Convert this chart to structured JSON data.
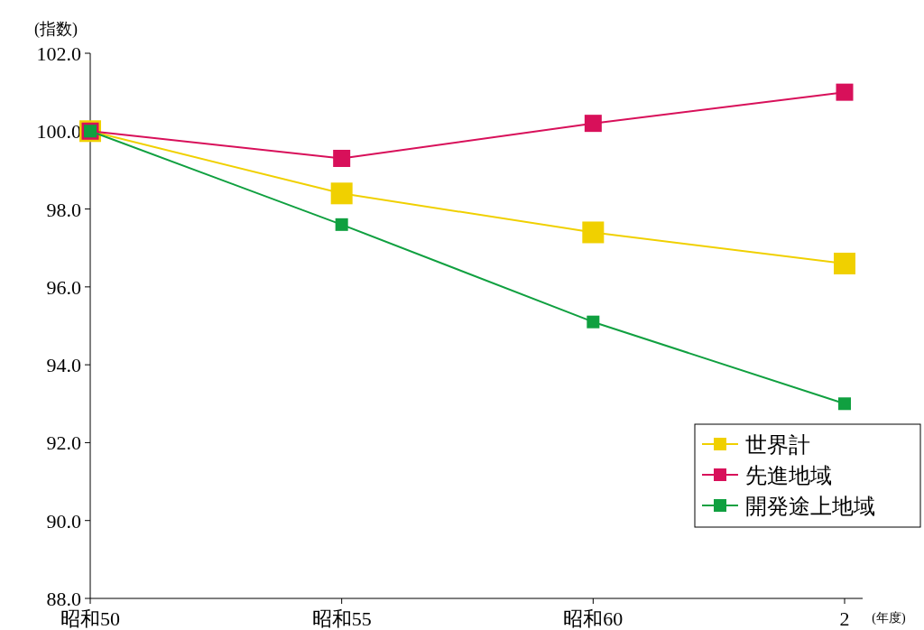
{
  "chart_data": {
    "type": "line",
    "ylabel": "(指数)",
    "xlabel": "(年度)",
    "categories": [
      "昭和50",
      "昭和55",
      "昭和60",
      "2"
    ],
    "series": [
      {
        "name": "世界計",
        "color": "#f0d000",
        "values": [
          100.0,
          98.4,
          97.4,
          96.6
        ]
      },
      {
        "name": "先進地域",
        "color": "#d8105a",
        "values": [
          100.0,
          99.3,
          100.2,
          101.0
        ]
      },
      {
        "name": "開発途上地域",
        "color": "#10a040",
        "values": [
          100.0,
          97.6,
          95.1,
          93.0
        ]
      }
    ],
    "ylim": [
      88,
      102
    ],
    "yticks": [
      {
        "value": 88,
        "label": "88.0"
      },
      {
        "value": 90,
        "label": "90.0"
      },
      {
        "value": 92,
        "label": "92.0"
      },
      {
        "value": 94,
        "label": "94.0"
      },
      {
        "value": 96,
        "label": "96.0"
      },
      {
        "value": 98,
        "label": "98.0"
      },
      {
        "value": 100,
        "label": "100.0"
      },
      {
        "value": 102,
        "label": "102.0"
      }
    ],
    "grid": false,
    "legend": "bottom right",
    "marker": "square",
    "line_style": "solid"
  }
}
